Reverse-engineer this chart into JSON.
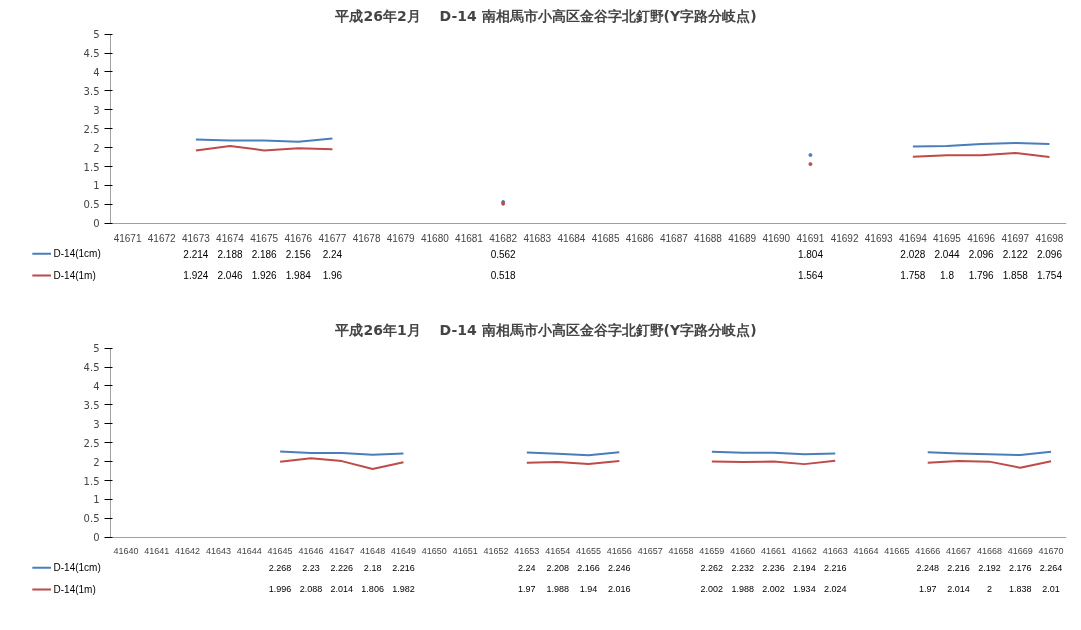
{
  "chart_data": [
    {
      "type": "line",
      "title": "平成26年2月　 D-14 南相馬市小高区金谷字北釘野(Y字路分岐点)",
      "categories": [
        "41671",
        "41672",
        "41673",
        "41674",
        "41675",
        "41676",
        "41677",
        "41678",
        "41679",
        "41680",
        "41681",
        "41682",
        "41683",
        "41684",
        "41685",
        "41686",
        "41687",
        "41688",
        "41689",
        "41690",
        "41691",
        "41692",
        "41693",
        "41694",
        "41695",
        "41696",
        "41697",
        "41698"
      ],
      "series": [
        {
          "name": "D-14(1cm)",
          "color": "#4a7ebb",
          "values": [
            null,
            null,
            2.214,
            2.188,
            2.186,
            2.156,
            2.24,
            null,
            null,
            null,
            null,
            0.562,
            null,
            null,
            null,
            null,
            null,
            null,
            null,
            null,
            1.804,
            null,
            null,
            2.028,
            2.044,
            2.096,
            2.122,
            2.096
          ]
        },
        {
          "name": "D-14(1m)",
          "color": "#be4b48",
          "values": [
            null,
            null,
            1.924,
            2.046,
            1.926,
            1.984,
            1.96,
            null,
            null,
            null,
            null,
            0.518,
            null,
            null,
            null,
            null,
            null,
            null,
            null,
            null,
            1.564,
            null,
            null,
            1.758,
            1.8,
            1.796,
            1.858,
            1.754
          ]
        }
      ],
      "ylim": [
        0,
        5
      ],
      "yticks": [
        0,
        0.5,
        1,
        1.5,
        2,
        2.5,
        3,
        3.5,
        4,
        4.5,
        5
      ],
      "data_labels": true,
      "legend": "bottom"
    },
    {
      "type": "line",
      "title": "平成26年1月　 D-14 南相馬市小高区金谷字北釘野(Y字路分岐点)",
      "categories": [
        "41640",
        "41641",
        "41642",
        "41643",
        "41644",
        "41645",
        "41646",
        "41647",
        "41648",
        "41649",
        "41650",
        "41651",
        "41652",
        "41653",
        "41654",
        "41655",
        "41656",
        "41657",
        "41658",
        "41659",
        "41660",
        "41661",
        "41662",
        "41663",
        "41664",
        "41665",
        "41666",
        "41667",
        "41668",
        "41669",
        "41670"
      ],
      "series": [
        {
          "name": "D-14(1cm)",
          "color": "#4a7ebb",
          "values": [
            null,
            null,
            null,
            null,
            null,
            2.268,
            2.23,
            2.226,
            2.18,
            2.216,
            null,
            null,
            null,
            2.24,
            2.208,
            2.166,
            2.246,
            null,
            null,
            2.262,
            2.232,
            2.236,
            2.194,
            2.216,
            null,
            null,
            2.248,
            2.216,
            2.192,
            2.176,
            2.264
          ]
        },
        {
          "name": "D-14(1m)",
          "color": "#be4b48",
          "values": [
            null,
            null,
            null,
            null,
            null,
            1.996,
            2.088,
            2.014,
            1.806,
            1.982,
            null,
            null,
            null,
            1.97,
            1.988,
            1.94,
            2.016,
            null,
            null,
            2.002,
            1.988,
            2.002,
            1.934,
            2.024,
            null,
            null,
            1.97,
            2.014,
            2,
            1.838,
            2.01
          ]
        }
      ],
      "ylim": [
        0,
        5
      ],
      "yticks": [
        0,
        0.5,
        1,
        1.5,
        2,
        2.5,
        3,
        3.5,
        4,
        4.5,
        5
      ],
      "data_labels": true,
      "legend": "bottom"
    }
  ]
}
